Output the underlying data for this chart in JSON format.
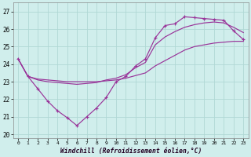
{
  "xlabel": "Windchill (Refroidissement éolien,°C)",
  "xlim": [
    -0.5,
    23.5
  ],
  "ylim": [
    19.8,
    27.5
  ],
  "yticks": [
    20,
    21,
    22,
    23,
    24,
    25,
    26,
    27
  ],
  "xticks": [
    0,
    1,
    2,
    3,
    4,
    5,
    6,
    7,
    8,
    9,
    10,
    11,
    12,
    13,
    14,
    15,
    16,
    17,
    18,
    19,
    20,
    21,
    22,
    23
  ],
  "background_color": "#d0eeec",
  "grid_color": "#b0d8d5",
  "line_color": "#993399",
  "line1_y": [
    24.3,
    23.3,
    23.15,
    23.1,
    23.05,
    23.0,
    23.0,
    23.0,
    23.0,
    23.05,
    23.1,
    23.2,
    23.35,
    23.5,
    23.9,
    24.2,
    24.5,
    24.8,
    25.0,
    25.1,
    25.2,
    25.25,
    25.3,
    25.3
  ],
  "line2_y": [
    24.3,
    23.3,
    22.6,
    21.9,
    21.35,
    20.95,
    20.5,
    21.0,
    21.5,
    22.1,
    23.0,
    23.3,
    23.9,
    24.3,
    25.5,
    26.2,
    26.3,
    26.7,
    26.65,
    26.6,
    26.55,
    26.5,
    25.9,
    25.4
  ],
  "line3_y": [
    24.3,
    23.3,
    23.1,
    23.0,
    22.95,
    22.9,
    22.85,
    22.9,
    22.95,
    23.1,
    23.2,
    23.4,
    23.8,
    24.1,
    25.1,
    25.55,
    25.85,
    26.1,
    26.25,
    26.35,
    26.4,
    26.35,
    26.1,
    25.8
  ]
}
